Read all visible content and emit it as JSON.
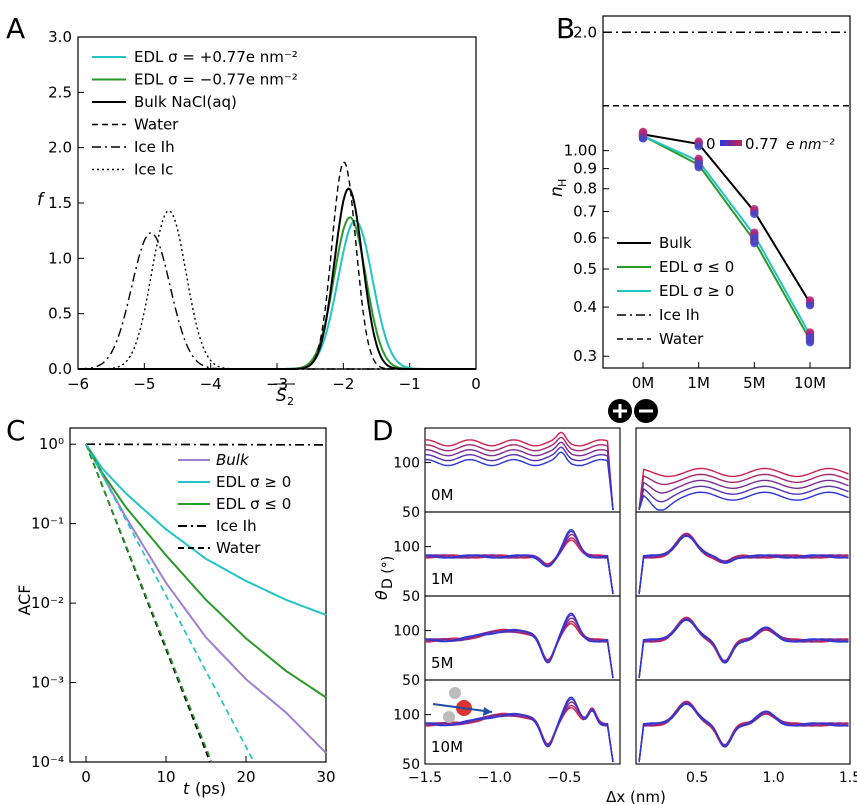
{
  "panels": {
    "A": {
      "letter": "A"
    },
    "B": {
      "letter": "B"
    },
    "C": {
      "letter": "C"
    },
    "D": {
      "letter": "D"
    }
  },
  "colors": {
    "cyan": "#22c4c4",
    "green": "#2a9a2a",
    "black": "#000000",
    "purple": "#a07fd0",
    "blue": "#2a36d8",
    "red": "#d0204e"
  },
  "chart_data": [
    {
      "panel": "A",
      "type": "line",
      "xlabel": "S2 (overline)",
      "ylabel": "f",
      "xlim": [
        -6,
        0
      ],
      "ylim": [
        0,
        3.0
      ],
      "xticks": [
        "−6",
        "−5",
        "−4",
        "−3",
        "−2",
        "−1",
        "0"
      ],
      "yticks": [
        "0.0",
        "0.5",
        "1.0",
        "1.5",
        "2.0",
        "2.5",
        "3.0"
      ],
      "legend_position": "top-left",
      "series": [
        {
          "name": "EDL σ = +0.77e nm⁻²",
          "style": "solid",
          "color": "#22c4c4",
          "peak_x": -1.82,
          "peak_y": 1.34,
          "width": 0.26
        },
        {
          "name": "EDL σ = −0.77e nm⁻²",
          "style": "solid",
          "color": "#2a9a2a",
          "peak_x": -1.9,
          "peak_y": 1.37,
          "width": 0.24
        },
        {
          "name": "Bulk NaCl(aq)",
          "style": "solid",
          "color": "#000000",
          "peak_x": -1.92,
          "peak_y": 1.63,
          "width": 0.21
        },
        {
          "name": "Water",
          "style": "dashed",
          "color": "#000000",
          "peak_x": -1.99,
          "peak_y": 1.87,
          "width": 0.18
        },
        {
          "name": "Ice Ih",
          "style": "dashdot",
          "color": "#000000",
          "peak_x": -4.9,
          "peak_y": 1.23,
          "width": 0.29
        },
        {
          "name": "Ice Ic",
          "style": "dotted",
          "color": "#000000",
          "peak_x": -4.63,
          "peak_y": 1.43,
          "width": 0.26
        }
      ]
    },
    {
      "panel": "B",
      "type": "line",
      "ylabel": "nH",
      "yscale": "log",
      "ylim": [
        0.28,
        2.2
      ],
      "categories": [
        "0M",
        "1M",
        "5M",
        "10M"
      ],
      "yticks": [
        "0.3",
        "0.4",
        "0.5",
        "0.6",
        "0.7",
        "0.8",
        "0.9",
        "1.00",
        "2.0"
      ],
      "colorbar_label": "0 — 0.77 e nm⁻²",
      "colorbar_start": "0",
      "colorbar_end": "0.77",
      "colorbar_unit": "e nm⁻²",
      "legend_position": "lower-left",
      "series": [
        {
          "name": "Bulk",
          "style": "solid",
          "color": "#000000",
          "values": [
            1.1,
            1.04,
            0.7,
            0.41
          ]
        },
        {
          "name": "EDL σ ≤ 0",
          "style": "solid",
          "color": "#2a9a2a",
          "values": [
            1.09,
            0.92,
            0.59,
            0.33
          ]
        },
        {
          "name": "EDL σ ≥ 0",
          "style": "solid",
          "color": "#22c4c4",
          "values": [
            1.09,
            0.94,
            0.61,
            0.34
          ]
        },
        {
          "name": "Ice Ih",
          "style": "dashdot",
          "color": "#000000",
          "values": [
            2.0,
            2.0,
            2.0,
            2.0
          ]
        },
        {
          "name": "Water",
          "style": "dashed",
          "color": "#000000",
          "values": [
            1.3,
            1.3,
            1.3,
            1.3
          ]
        }
      ]
    },
    {
      "panel": "C",
      "type": "line",
      "xlabel": "t (ps)",
      "ylabel": "ACF",
      "yscale": "log",
      "xlim": [
        -2,
        30
      ],
      "ylim": [
        0.0001,
        1.6
      ],
      "xticks": [
        "0",
        "10",
        "20",
        "30"
      ],
      "yticks": [
        "10⁰",
        "10⁻¹",
        "10⁻²",
        "10⁻³",
        "10⁻⁴"
      ],
      "legend_position": "top-right",
      "series": [
        {
          "name": "Bulk",
          "style": "solid",
          "color": "#a07fd0",
          "x": [
            0,
            2,
            5,
            10,
            15,
            20,
            25,
            30
          ],
          "values": [
            1.0,
            0.42,
            0.12,
            0.018,
            0.0037,
            0.0011,
            0.00042,
            0.00013
          ]
        },
        {
          "name": "EDL σ ≥ 0",
          "style": "solid",
          "color": "#22c4c4",
          "x": [
            0,
            2,
            5,
            10,
            15,
            20,
            25,
            30
          ],
          "values": [
            1.0,
            0.5,
            0.24,
            0.085,
            0.036,
            0.019,
            0.011,
            0.0071
          ]
        },
        {
          "name": "EDL σ ≤ 0",
          "style": "solid",
          "color": "#2a9a2a",
          "x": [
            0,
            2,
            5,
            10,
            15,
            20,
            25,
            30
          ],
          "values": [
            1.0,
            0.44,
            0.16,
            0.04,
            0.011,
            0.0036,
            0.0014,
            0.00065
          ]
        },
        {
          "name": "Ice Ih",
          "style": "dashdot",
          "color": "#000000",
          "x": [
            0,
            30
          ],
          "values": [
            1.0,
            0.98
          ]
        },
        {
          "name": "Water",
          "style": "dashed",
          "color": "#000000",
          "x": [
            0,
            15.5
          ],
          "values": [
            1.0,
            0.0001
          ]
        },
        {
          "name": "",
          "style": "dashed",
          "color": "#2a9a2a",
          "x": [
            0,
            15.7
          ],
          "values": [
            1.0,
            0.0001
          ]
        },
        {
          "name": "",
          "style": "dashed",
          "color": "#22c4c4",
          "x": [
            0,
            21
          ],
          "values": [
            1.0,
            0.0001
          ]
        }
      ]
    },
    {
      "panel": "D",
      "type": "line",
      "xlabel": "Δx (nm)",
      "ylabel": "θD (°)",
      "ylim": [
        50,
        135
      ],
      "xlim_left": [
        -1.5,
        -0.1
      ],
      "xlim_right": [
        0.1,
        1.5
      ],
      "xticks_left": [
        "−1.5",
        "−1.0",
        "−0.5"
      ],
      "xticks_right": [
        "0.5",
        "1.0",
        "1.5"
      ],
      "yticks": [
        "50",
        "100"
      ],
      "rows": [
        "0M",
        "1M",
        "5M",
        "10M"
      ],
      "color_gradient": [
        "#d0204e",
        "#2a36d8"
      ]
    }
  ]
}
